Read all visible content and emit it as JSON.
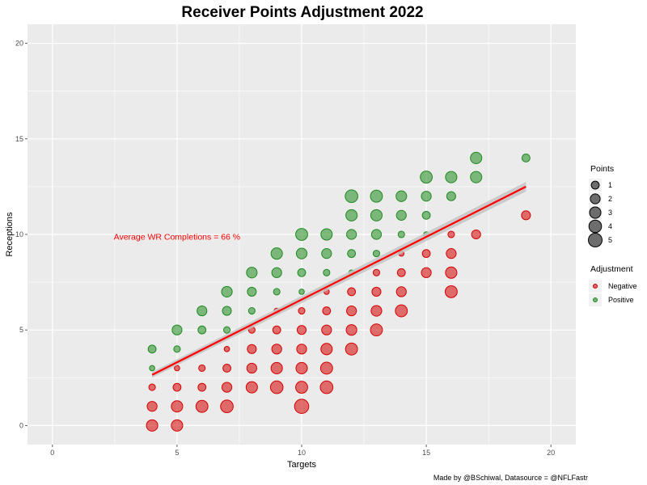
{
  "colors": {
    "negative": "#d40000",
    "positive": "#1f8a1f",
    "trend": "#ff0000",
    "band": "#c4c4c4",
    "panel": "#ebebeb",
    "grid": "#ffffff",
    "annotation": "#ff0000"
  },
  "chart_data": {
    "type": "scatter",
    "title": "Receiver Points Adjustment 2022",
    "xlabel": "Targets",
    "ylabel": "Receptions",
    "xlim": [
      -1,
      21
    ],
    "ylim": [
      -1,
      21
    ],
    "x_ticks": [
      0,
      5,
      10,
      15,
      20
    ],
    "y_ticks": [
      0,
      5,
      10,
      15,
      20
    ],
    "grid": true,
    "caption": "Made by @BSchiwal, Datasource = @NFLFastr",
    "annotation": {
      "text": "Average WR Completions = 66 %",
      "x": 5,
      "y": 9.9
    },
    "trend": {
      "x": [
        4,
        19
      ],
      "y": [
        2.65,
        12.5
      ],
      "band": 0.25
    },
    "legend_placement": "right",
    "legend_points": {
      "title": "Points",
      "values": [
        1,
        2,
        3,
        4,
        5
      ]
    },
    "legend_adjustment": {
      "title": "Adjustment",
      "entries": [
        "Negative",
        "Positive"
      ]
    },
    "series": [
      {
        "name": "Negative",
        "points": [
          [
            4,
            0,
            3
          ],
          [
            4,
            1,
            2
          ],
          [
            4,
            2,
            0.5
          ],
          [
            5,
            0,
            3
          ],
          [
            5,
            1,
            3
          ],
          [
            5,
            2,
            1
          ],
          [
            5,
            3,
            0.2
          ],
          [
            6,
            1,
            3.5
          ],
          [
            6,
            2,
            1
          ],
          [
            6,
            3,
            0.5
          ],
          [
            7,
            1,
            4
          ],
          [
            7,
            2,
            2
          ],
          [
            7,
            3,
            1
          ],
          [
            7,
            4,
            0.2
          ],
          [
            8,
            2,
            3
          ],
          [
            8,
            3,
            2
          ],
          [
            8,
            4,
            1.5
          ],
          [
            8,
            5,
            0.5
          ],
          [
            9,
            2,
            4
          ],
          [
            9,
            3,
            3
          ],
          [
            9,
            4,
            2
          ],
          [
            9,
            5,
            1
          ],
          [
            9,
            6,
            0.2
          ],
          [
            10,
            1,
            5.5
          ],
          [
            10,
            2,
            3.5
          ],
          [
            10,
            3,
            3
          ],
          [
            10,
            4,
            2
          ],
          [
            10,
            5,
            1.5
          ],
          [
            10,
            6,
            0.5
          ],
          [
            11,
            2,
            4
          ],
          [
            11,
            3,
            3.5
          ],
          [
            11,
            4,
            3
          ],
          [
            11,
            5,
            2
          ],
          [
            11,
            6,
            1
          ],
          [
            11,
            7,
            0.2
          ],
          [
            12,
            4,
            3.5
          ],
          [
            12,
            5,
            2.5
          ],
          [
            12,
            6,
            2
          ],
          [
            12,
            7,
            1
          ],
          [
            13,
            5,
            3.5
          ],
          [
            13,
            6,
            2.5
          ],
          [
            13,
            7,
            1.5
          ],
          [
            13,
            8,
            0.5
          ],
          [
            14,
            6,
            3.5
          ],
          [
            14,
            7,
            2
          ],
          [
            14,
            8,
            1
          ],
          [
            14,
            9,
            0.2
          ],
          [
            15,
            8,
            2
          ],
          [
            15,
            9,
            1
          ],
          [
            16,
            7,
            3.5
          ],
          [
            16,
            8,
            3
          ],
          [
            16,
            9,
            2
          ],
          [
            16,
            10,
            0.5
          ],
          [
            17,
            10,
            1.5
          ],
          [
            19,
            11,
            1.5
          ]
        ]
      },
      {
        "name": "Positive",
        "points": [
          [
            4,
            3,
            0.2
          ],
          [
            4,
            4,
            1
          ],
          [
            5,
            4,
            0.5
          ],
          [
            5,
            5,
            2
          ],
          [
            6,
            5,
            1
          ],
          [
            6,
            6,
            2
          ],
          [
            7,
            5,
            0.5
          ],
          [
            7,
            6,
            1.5
          ],
          [
            7,
            7,
            2.5
          ],
          [
            8,
            6,
            0.5
          ],
          [
            8,
            7,
            1.5
          ],
          [
            8,
            8,
            2.5
          ],
          [
            9,
            7,
            0.5
          ],
          [
            9,
            8,
            2
          ],
          [
            9,
            9,
            3
          ],
          [
            10,
            7,
            0.2
          ],
          [
            10,
            8,
            1
          ],
          [
            10,
            9,
            2.5
          ],
          [
            10,
            10,
            3.5
          ],
          [
            11,
            8,
            0.5
          ],
          [
            11,
            9,
            2
          ],
          [
            11,
            10,
            3
          ],
          [
            12,
            8,
            0.2
          ],
          [
            12,
            9,
            1
          ],
          [
            12,
            10,
            2
          ],
          [
            12,
            11,
            3
          ],
          [
            12,
            12,
            4
          ],
          [
            13,
            9,
            0.5
          ],
          [
            13,
            10,
            2
          ],
          [
            13,
            11,
            3
          ],
          [
            13,
            12,
            3.5
          ],
          [
            14,
            10,
            0.5
          ],
          [
            14,
            11,
            2
          ],
          [
            14,
            12,
            2.5
          ],
          [
            15,
            10,
            0.2
          ],
          [
            15,
            11,
            1
          ],
          [
            15,
            12,
            2
          ],
          [
            15,
            13,
            3.5
          ],
          [
            16,
            12,
            1.5
          ],
          [
            16,
            13,
            3
          ],
          [
            17,
            13,
            3
          ],
          [
            17,
            14,
            3
          ],
          [
            19,
            14,
            1
          ]
        ]
      }
    ]
  }
}
